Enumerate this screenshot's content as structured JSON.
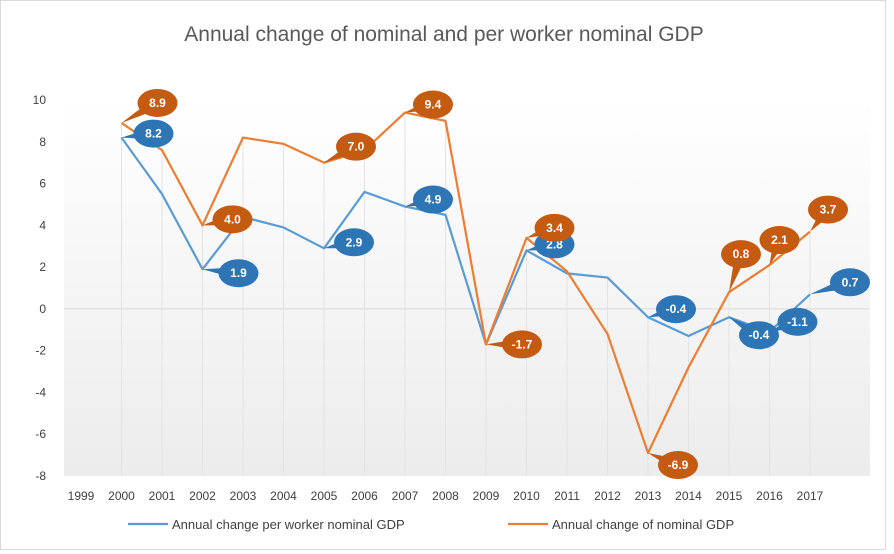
{
  "chart_data": {
    "type": "line",
    "title": "Annual change of nominal and per worker nominal GDP",
    "xlabel": "",
    "ylabel": "",
    "ylim": [
      -8,
      10
    ],
    "yticks": [
      -8,
      -6,
      -4,
      -2,
      0,
      2,
      4,
      6,
      8,
      10
    ],
    "categories": [
      "1999",
      "2000",
      "2001",
      "2002",
      "2003",
      "2004",
      "2005",
      "2006",
      "2007",
      "2008",
      "2009",
      "2010",
      "2011",
      "2012",
      "2013",
      "2014",
      "2015",
      "2016",
      "2017"
    ],
    "series": [
      {
        "name": "Annual change per worker nominal GDP",
        "color": "#5b9bd5",
        "label_color": "#2e75b6",
        "values": [
          null,
          8.2,
          5.5,
          1.9,
          4.4,
          3.9,
          2.9,
          5.6,
          4.9,
          4.5,
          -1.7,
          2.8,
          1.7,
          1.5,
          -0.4,
          -1.3,
          -0.4,
          -1.1,
          0.7
        ],
        "labels": [
          null,
          "8.2",
          null,
          "1.9",
          null,
          null,
          "2.9",
          null,
          "4.9",
          null,
          null,
          "2.8",
          null,
          null,
          "-0.4",
          null,
          "-0.4",
          "-1.1",
          "0.7"
        ]
      },
      {
        "name": "Annual change of nominal GDP",
        "color": "#ed7d31",
        "label_color": "#c55a11",
        "values": [
          null,
          8.9,
          7.6,
          4.0,
          8.2,
          7.9,
          7.0,
          7.6,
          9.4,
          9.0,
          -1.7,
          3.4,
          1.8,
          -1.2,
          -6.9,
          -2.8,
          0.8,
          2.1,
          3.7
        ],
        "labels": [
          null,
          "8.9",
          null,
          "4.0",
          null,
          null,
          "7.0",
          null,
          "9.4",
          null,
          "-1.7",
          "3.4",
          null,
          null,
          "-6.9",
          null,
          "0.8",
          "2.1",
          "3.7"
        ]
      }
    ],
    "grid": "vertical-drop-lines",
    "legend": "bottom"
  }
}
